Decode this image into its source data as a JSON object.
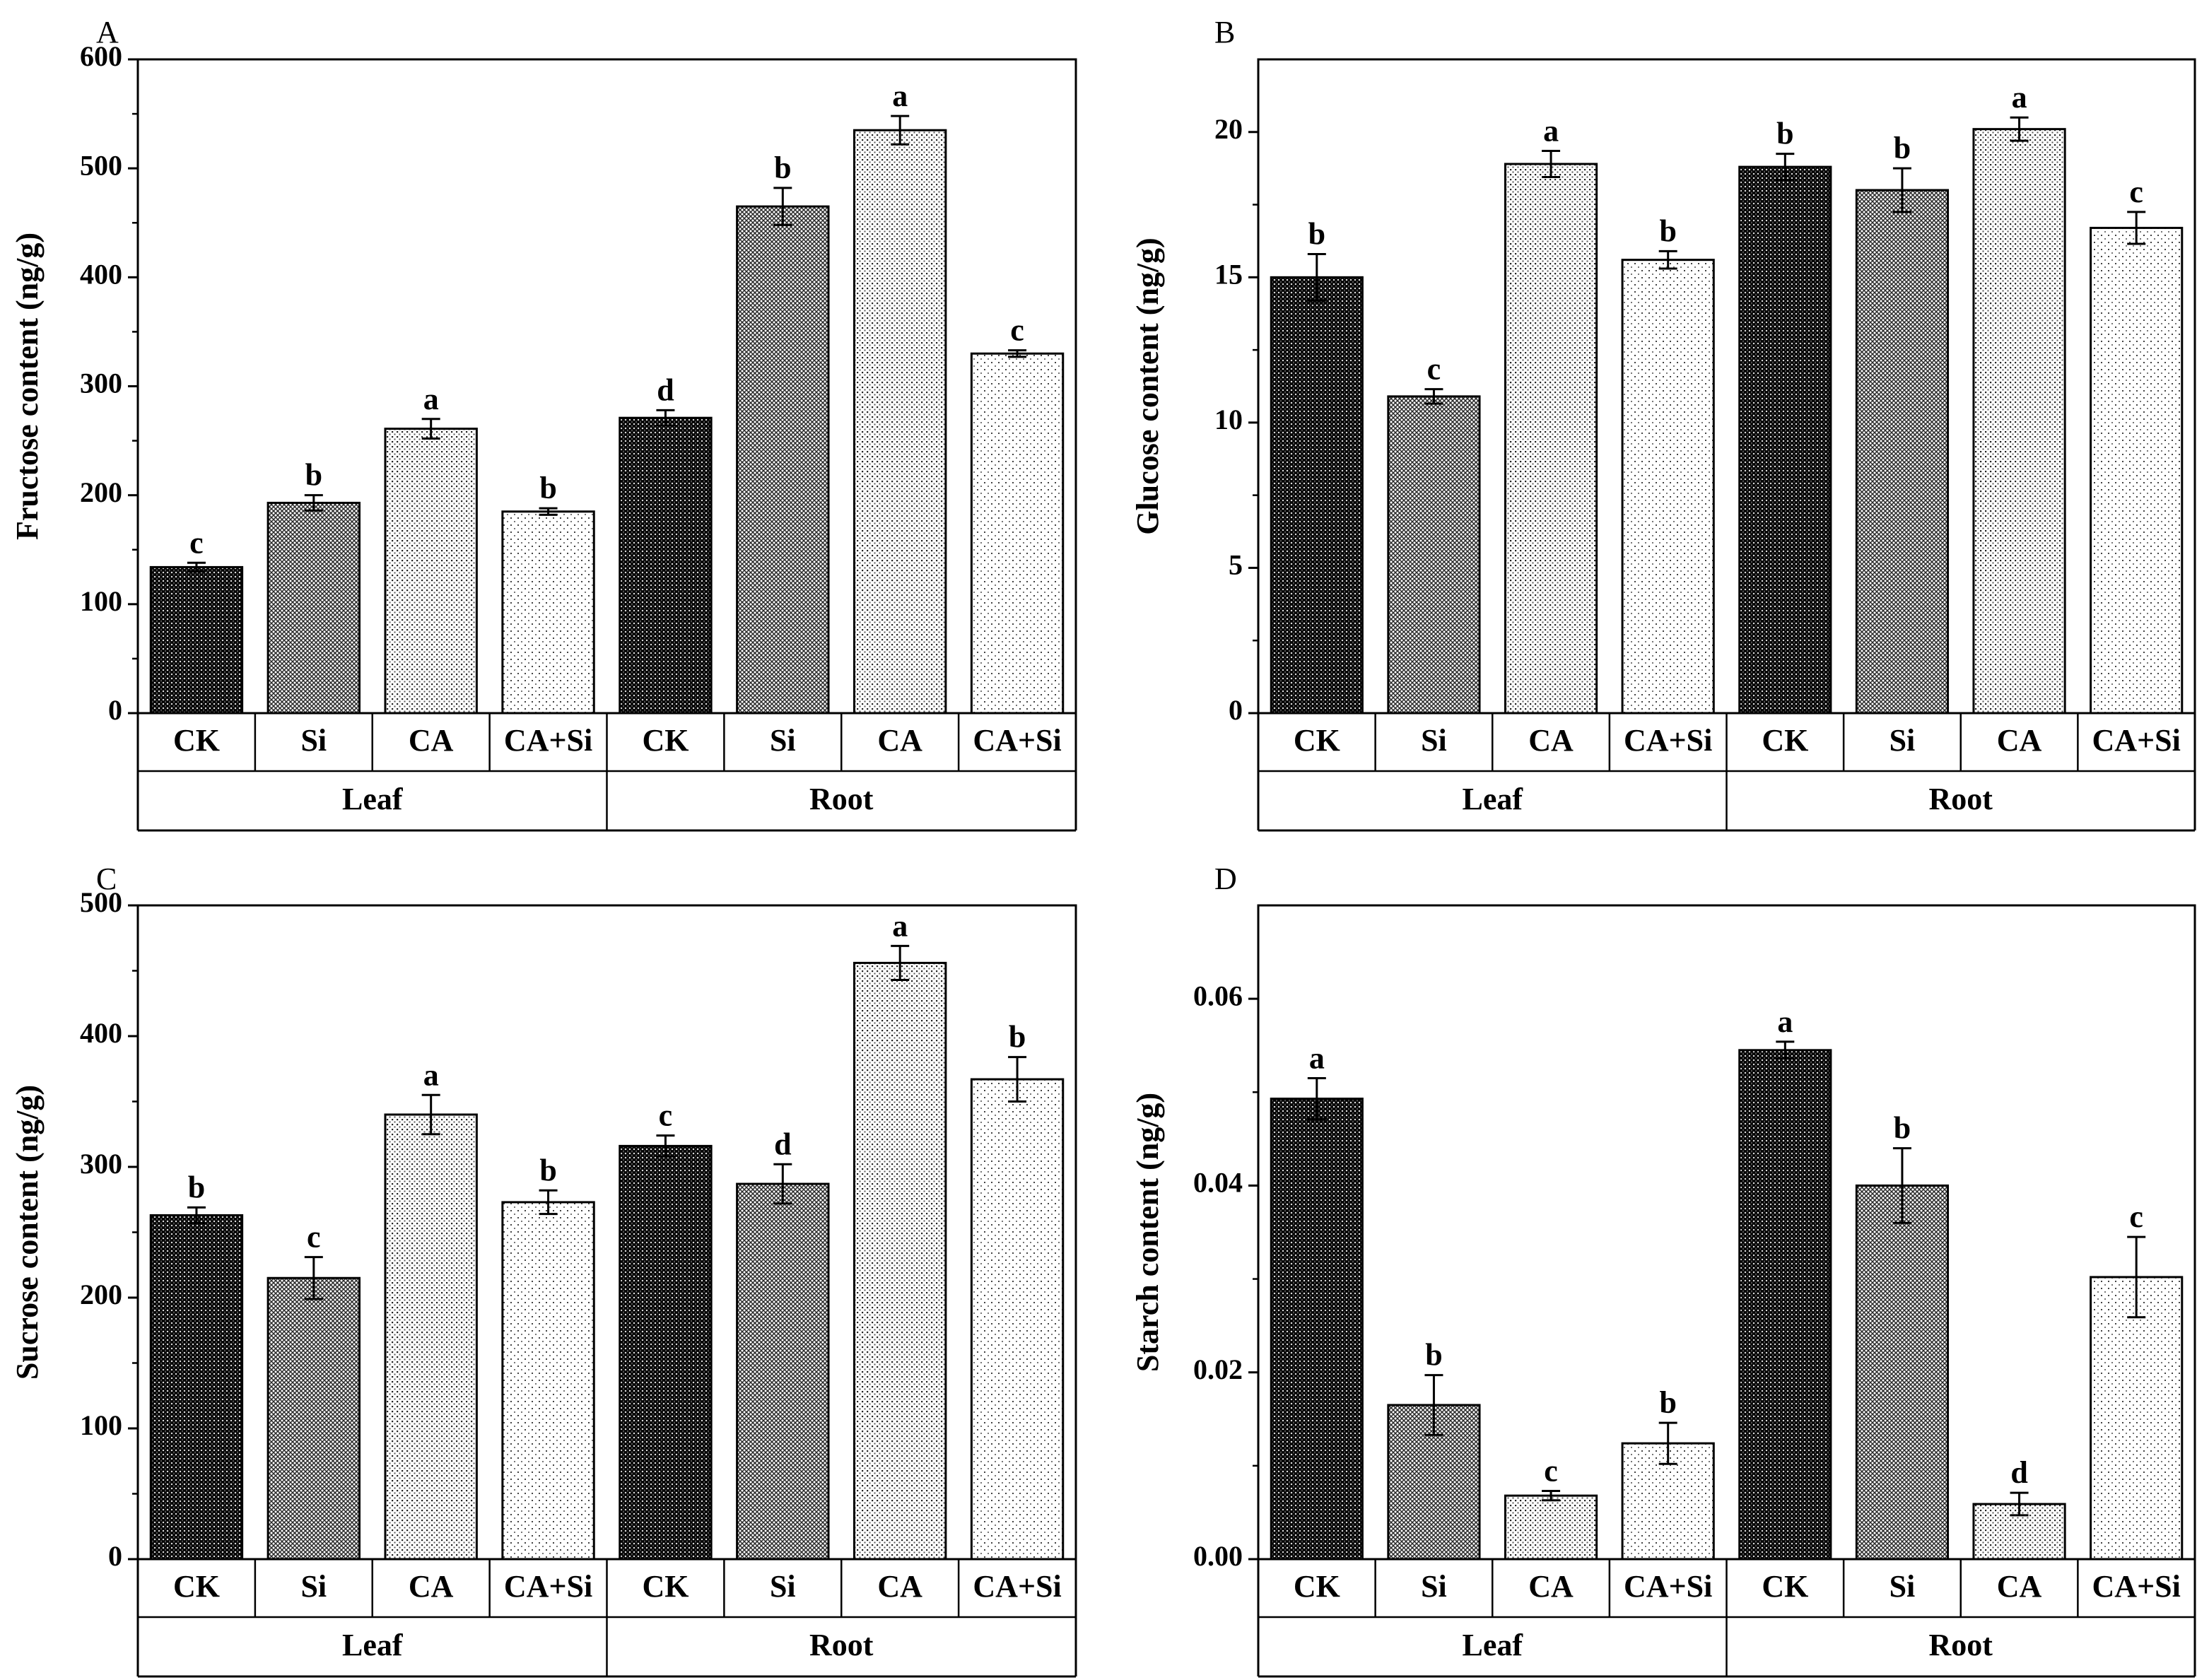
{
  "patterns": {
    "CK": "dense-crosshatch",
    "Si": "fine-crosshatch",
    "CA": "dense-dots",
    "CA+Si": "sparse-dots"
  },
  "chart_data": [
    {
      "panel": "A",
      "type": "bar",
      "ylabel": "Fructose content (ng/g)",
      "ylim": [
        0,
        600
      ],
      "yticks": [
        0,
        100,
        200,
        300,
        400,
        500,
        600
      ],
      "groups": [
        {
          "name": "Leaf",
          "categories": [
            "CK",
            "Si",
            "CA",
            "CA+Si"
          ],
          "values": [
            134,
            193,
            261,
            185
          ],
          "errors": [
            4,
            7,
            9,
            3
          ],
          "significance": [
            "c",
            "b",
            "a",
            "b"
          ]
        },
        {
          "name": "Root",
          "categories": [
            "CK",
            "Si",
            "CA",
            "CA+Si"
          ],
          "values": [
            271,
            465,
            535,
            330
          ],
          "errors": [
            7,
            17,
            13,
            3
          ],
          "significance": [
            "d",
            "b",
            "a",
            "c"
          ]
        }
      ]
    },
    {
      "panel": "B",
      "type": "bar",
      "ylabel": "Glucose content (ng/g)",
      "ylim": [
        0,
        22.5
      ],
      "yticks": [
        0,
        5,
        10,
        15,
        20
      ],
      "groups": [
        {
          "name": "Leaf",
          "categories": [
            "CK",
            "Si",
            "CA",
            "CA+Si"
          ],
          "values": [
            15.0,
            10.9,
            18.9,
            15.6
          ],
          "errors": [
            0.8,
            0.25,
            0.45,
            0.3
          ],
          "significance": [
            "b",
            "c",
            "a",
            "b"
          ]
        },
        {
          "name": "Root",
          "categories": [
            "CK",
            "Si",
            "CA",
            "CA+Si"
          ],
          "values": [
            18.8,
            18.0,
            20.1,
            16.7
          ],
          "errors": [
            0.45,
            0.75,
            0.4,
            0.55
          ],
          "significance": [
            "b",
            "b",
            "a",
            "c"
          ]
        }
      ]
    },
    {
      "panel": "C",
      "type": "bar",
      "ylabel": "Sucrose content (ng/g)",
      "ylim": [
        0,
        500
      ],
      "yticks": [
        0,
        100,
        200,
        300,
        400,
        500
      ],
      "groups": [
        {
          "name": "Leaf",
          "categories": [
            "CK",
            "Si",
            "CA",
            "CA+Si"
          ],
          "values": [
            263,
            215,
            340,
            273
          ],
          "errors": [
            6,
            16,
            15,
            9
          ],
          "significance": [
            "b",
            "c",
            "a",
            "b"
          ]
        },
        {
          "name": "Root",
          "categories": [
            "CK",
            "Si",
            "CA",
            "CA+Si"
          ],
          "values": [
            316,
            287,
            456,
            367
          ],
          "errors": [
            8,
            15,
            13,
            17
          ],
          "significance": [
            "c",
            "d",
            "a",
            "b"
          ]
        }
      ]
    },
    {
      "panel": "D",
      "type": "bar",
      "ylabel": "Starch content (ng/g)",
      "ylim": [
        0,
        0.07
      ],
      "yticks": [
        0.0,
        0.02,
        0.04,
        0.06
      ],
      "ytick_labels": [
        "0.00",
        "0.02",
        "0.04",
        "0.06"
      ],
      "groups": [
        {
          "name": "Leaf",
          "categories": [
            "CK",
            "Si",
            "CA",
            "CA+Si"
          ],
          "values": [
            0.0493,
            0.0165,
            0.0068,
            0.0124
          ],
          "errors": [
            0.0022,
            0.0032,
            0.0005,
            0.0022
          ],
          "significance": [
            "a",
            "b",
            "c",
            "b"
          ]
        },
        {
          "name": "Root",
          "categories": [
            "CK",
            "Si",
            "CA",
            "CA+Si"
          ],
          "values": [
            0.0545,
            0.04,
            0.0059,
            0.0302
          ],
          "errors": [
            0.0009,
            0.004,
            0.0012,
            0.0043
          ],
          "significance": [
            "a",
            "b",
            "d",
            "c"
          ]
        }
      ]
    }
  ]
}
